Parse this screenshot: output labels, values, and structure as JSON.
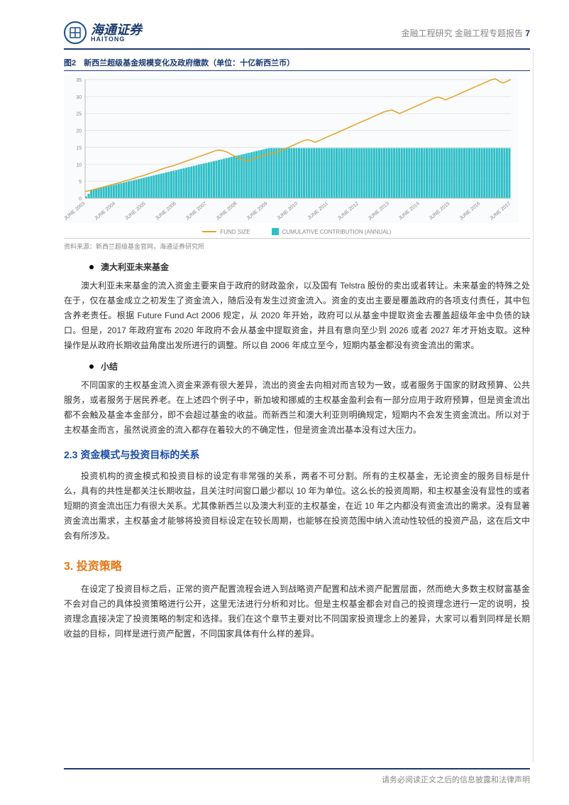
{
  "header": {
    "logo_cn": "海通证券",
    "logo_en": "HAITONG",
    "right_text": "金融工程研究 金融工程专题报告",
    "page_num": "7"
  },
  "figure": {
    "title": "图2　新西兰超级基金规模变化及政府缴款（单位：十亿新西兰币）",
    "source": "资料来源：新西兰超级基金官网，海通证券研究所",
    "chart": {
      "type": "combo-bar-line",
      "ylim": [
        0,
        35
      ],
      "ytick_step": 5,
      "background_color": "#fafbfc",
      "grid_color": "#e6e6e6",
      "axis_color": "#bbbbbb",
      "tick_fontsize": 7,
      "tick_color": "#888888",
      "x_labels": [
        "JUNE 2003",
        "JUNE 2004",
        "JUNE 2005",
        "JUNE 2006",
        "JUNE 2007",
        "JUNE 2008",
        "JUNE 2009",
        "JUNE 2010",
        "JUNE 2011",
        "JUNE 2012",
        "JUNE 2013",
        "JUNE 2014",
        "JUNE 2015",
        "JUNE 2016",
        "JUNE 2017"
      ],
      "bars": {
        "label": "CUMULATIVE CONTRIBUTION (ANNUAL)",
        "color": "#2fbfc7",
        "point_count": 170,
        "values_summary": "monthly cumulative: ramps ~2 in mid-2003 to ~14.8 by mid-2009, flat ~14.8 thereafter"
      },
      "line": {
        "label": "FUND SIZE",
        "color": "#e5a026",
        "width": 1.5,
        "values": [
          2.0,
          2.2,
          2.5,
          2.8,
          3.1,
          3.4,
          3.7,
          4.0,
          4.3,
          4.6,
          5.0,
          5.3,
          5.6,
          6.0,
          6.3,
          6.6,
          7.0,
          7.4,
          7.8,
          8.2,
          8.6,
          9.0,
          9.3,
          9.6,
          10.0,
          10.4,
          10.8,
          11.2,
          11.6,
          12.0,
          12.4,
          12.8,
          13.2,
          13.6,
          14.0,
          14.2,
          14.0,
          13.6,
          13.0,
          12.4,
          11.8,
          11.4,
          11.0,
          11.2,
          11.6,
          12.0,
          12.4,
          12.8,
          13.0,
          13.3,
          13.6,
          14.0,
          14.5,
          15.0,
          15.5,
          16.0,
          16.5,
          17.0,
          17.3,
          17.0,
          16.5,
          17.0,
          17.5,
          18.0,
          18.5,
          19.0,
          19.5,
          20.0,
          20.5,
          21.0,
          21.5,
          22.0,
          22.5,
          23.0,
          23.5,
          24.0,
          24.5,
          25.0,
          25.5,
          25.8,
          26.0,
          25.5,
          25.0,
          25.5,
          26.0,
          26.5,
          27.0,
          27.5,
          28.0,
          28.5,
          29.0,
          29.5,
          29.8,
          29.5,
          29.0,
          29.5,
          30.0,
          30.5,
          31.0,
          31.5,
          32.0,
          32.5,
          33.0,
          33.5,
          34.0,
          34.5,
          35.0,
          35.2,
          34.5,
          34.0,
          34.5,
          35.0
        ]
      },
      "legend": {
        "fund_size": "FUND SIZE",
        "cumulative": "CUMULATIVE CONTRIBUTION (ANNUAL)"
      }
    }
  },
  "bullets": {
    "b1": "澳大利亚未来基金",
    "b2": "小结"
  },
  "paragraphs": {
    "p1": "澳大利亚未来基金的流入资金主要来自于政府的财政盈余，以及国有 Telstra 股份的卖出或者转让。未来基金的特殊之处在于，仅在基金成立之初发生了资金流入，随后没有发生过资金流入。资金的支出主要是覆盖政府的各项支付责任，其中包含养老责任。根据 Future Fund Act 2006 规定，从 2020 年开始，政府可以从基金中提取资金去覆盖超级年金中负债的缺口。但是，2017 年政府宣布 2020 年政府不会从基金中提取资金，并且有意向至少到 2026 或者 2027 年才开始支取。这种操作是从政府长期收益角度出发所进行的调整。所以自 2006 年成立至今，短期内基金都没有资金流出的需求。",
    "p2": "不同国家的主权基金流入资金来源有很大差异，流出的资金去向相对而言较为一致，或者服务于国家的财政预算、公共服务，或者服务于居民养老。在上述四个例子中，新加坡和挪威的主权基金盈利会有一部分应用于政府预算，但是资金流出都不会触及基金本金部分，即不会超过基金的收益。而新西兰和澳大利亚则明确规定，短期内不会发生资金流出。所以对于主权基金而言，虽然说资金的流入都存在着较大的不确定性，但是资金流出基本没有过大压力。",
    "p3": "投资机构的资金模式和投资目标的设定有非常强的关系，两者不可分割。所有的主权基金，无论资金的服务目标是什么，具有的共性是都关注长期收益，且关注时间窗口最少都以 10 年为单位。这么长的投资周期，和主权基金没有显性的或者短期的资金流出压力有很大关系。尤其像新西兰以及澳大利亚的主权基金，在近 10 年之内都没有资金流出的需求。没有显著资金流出需求，主权基金才能够将投资目标设定在较长周期，也能够在投资范围中纳入流动性较低的投资产品，这在后文中会有所涉及。",
    "p4": "在设定了投资目标之后，正常的资产配置流程会进入到战略资产配置和战术资产配置层面，然而绝大多数主权财富基金不会对自己的具体投资策略进行公开，这里无法进行分析和对比。但是主权基金都会对自己的投资理念进行一定的说明，投资理念直接决定了投资策略的制定和选择。我们在这个章节主要对比不同国家投资理念上的差异，大家可以看到同样是长期收益的目标，同样是进行资产配置，不同国家具体有什么样的差异。"
  },
  "headings": {
    "h2_23": "2.3 资金模式与投资目标的关系",
    "h1_3": "3. 投资策略"
  },
  "footer": "请务必阅读正文之后的信息披露和法律声明"
}
